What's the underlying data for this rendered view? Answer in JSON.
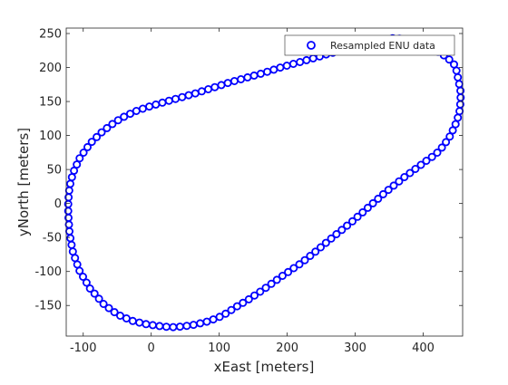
{
  "figure": {
    "background": "#ffffff"
  },
  "chart_data": {
    "type": "scatter",
    "title": "",
    "xlabel": "xEast [meters]",
    "ylabel": "yNorth [meters]",
    "xlim": [
      -125,
      458
    ],
    "ylim": [
      -195,
      258
    ],
    "xticks": [
      -100,
      0,
      100,
      200,
      300,
      400
    ],
    "yticks": [
      -150,
      -100,
      -50,
      0,
      50,
      100,
      150,
      200,
      250
    ],
    "grid": false,
    "legend": {
      "position": "top-right",
      "entries": [
        "Resampled ENU data"
      ]
    },
    "marker": {
      "shape": "circle",
      "filled": false,
      "color": "#0000ff"
    },
    "series": [
      {
        "name": "Resampled ENU data",
        "color": "#0000ff",
        "control_points": [
          [
            355,
            243
          ],
          [
            370,
            242
          ],
          [
            385,
            238
          ],
          [
            400,
            232
          ],
          [
            413,
            227
          ],
          [
            425,
            222
          ],
          [
            437,
            213
          ],
          [
            445,
            205
          ],
          [
            448,
            200
          ],
          [
            452,
            180
          ],
          [
            455,
            165
          ],
          [
            455,
            150
          ],
          [
            453,
            132
          ],
          [
            447,
            115
          ],
          [
            440,
            100
          ],
          [
            430,
            85
          ],
          [
            418,
            72
          ],
          [
            405,
            63
          ],
          [
            390,
            52
          ],
          [
            370,
            37
          ],
          [
            345,
            17
          ],
          [
            320,
            -5
          ],
          [
            295,
            -27
          ],
          [
            270,
            -47
          ],
          [
            245,
            -68
          ],
          [
            220,
            -88
          ],
          [
            195,
            -105
          ],
          [
            170,
            -123
          ],
          [
            145,
            -140
          ],
          [
            125,
            -152
          ],
          [
            105,
            -165
          ],
          [
            85,
            -173
          ],
          [
            65,
            -178
          ],
          [
            45,
            -181
          ],
          [
            30,
            -182
          ],
          [
            10,
            -180
          ],
          [
            -10,
            -177
          ],
          [
            -30,
            -172
          ],
          [
            -50,
            -163
          ],
          [
            -70,
            -148
          ],
          [
            -90,
            -125
          ],
          [
            -105,
            -100
          ],
          [
            -115,
            -72
          ],
          [
            -120,
            -45
          ],
          [
            -122,
            -15
          ],
          [
            -122,
            5
          ],
          [
            -120,
            25
          ],
          [
            -115,
            45
          ],
          [
            -105,
            67
          ],
          [
            -90,
            88
          ],
          [
            -75,
            103
          ],
          [
            -60,
            115
          ],
          [
            -45,
            125
          ],
          [
            -25,
            135
          ],
          [
            -5,
            142
          ],
          [
            15,
            148
          ],
          [
            40,
            155
          ],
          [
            65,
            162
          ],
          [
            90,
            170
          ],
          [
            115,
            178
          ],
          [
            140,
            185
          ],
          [
            165,
            192
          ],
          [
            190,
            200
          ],
          [
            215,
            207
          ],
          [
            240,
            214
          ],
          [
            260,
            220
          ],
          [
            285,
            226
          ],
          [
            310,
            233
          ],
          [
            330,
            238
          ],
          [
            345,
            241
          ]
        ]
      }
    ]
  }
}
